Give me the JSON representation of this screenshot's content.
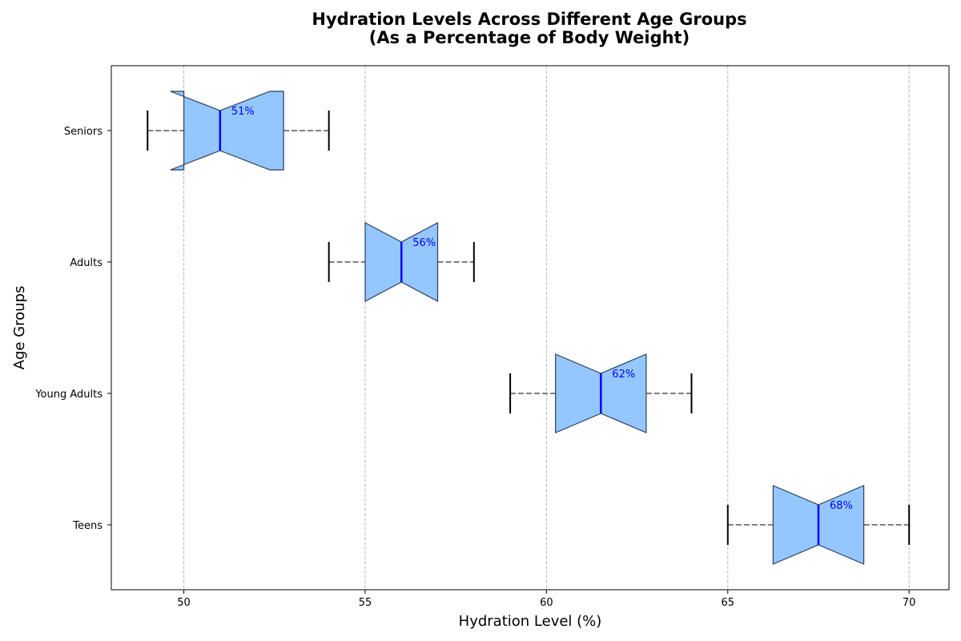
{
  "chart_data": {
    "type": "boxplot",
    "orientation": "horizontal",
    "title": "Hydration Levels Across Different Age Groups",
    "subtitle": "(As a Percentage of Body Weight)",
    "xlabel": "Hydration Level (%)",
    "ylabel": "Age Groups",
    "xlim": [
      48,
      71.1
    ],
    "xticks": [
      50,
      55,
      60,
      65,
      70
    ],
    "grid": "vertical dashed",
    "notched": true,
    "groups": [
      {
        "name": "Teens",
        "whisker_low": 65,
        "q1": 66.25,
        "median": 67.5,
        "q3": 68.75,
        "whisker_high": 70,
        "notch_low": 66.25,
        "notch_high": 68.75,
        "median_label": "68%"
      },
      {
        "name": "Young Adults",
        "whisker_low": 59,
        "q1": 60.25,
        "median": 61.5,
        "q3": 62.75,
        "whisker_high": 64,
        "notch_low": 60.25,
        "notch_high": 62.75,
        "median_label": "62%"
      },
      {
        "name": "Adults",
        "whisker_low": 54,
        "q1": 55,
        "median": 56,
        "q3": 57,
        "whisker_high": 58,
        "notch_low": 55,
        "notch_high": 57,
        "median_label": "56%"
      },
      {
        "name": "Seniors",
        "whisker_low": 49,
        "q1": 50,
        "median": 51,
        "q3": 52.75,
        "whisker_high": 54,
        "notch_low": 49.63,
        "notch_high": 52.37,
        "median_label": "51%"
      }
    ],
    "colors": {
      "box_fill": "#94c7ff",
      "box_edge": "#2b3f5e",
      "median_line": "#0000ff",
      "median_label": "#0000ff",
      "whisker": "#808080",
      "cap": "#000000",
      "grid": "#b0b0b0"
    }
  }
}
